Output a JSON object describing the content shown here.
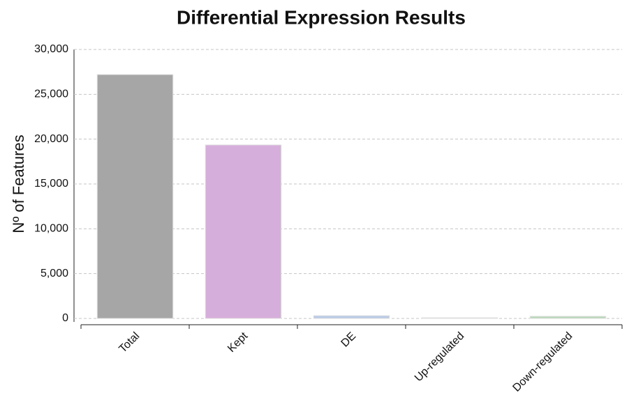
{
  "chart_data": {
    "type": "bar",
    "title": "Differential Expression Results",
    "y_label": "Nº of Features",
    "categories": [
      "Total",
      "Kept",
      "DE",
      "Up-regulated",
      "Down-regulated"
    ],
    "values": [
      27200,
      19350,
      310,
      80,
      240
    ],
    "colors": [
      "#a6a6a6",
      "#d6aedb",
      "#b9c9e6",
      "#c8c8c8",
      "#b8d8b8"
    ],
    "ylim": [
      0,
      30000
    ],
    "yticks": [
      0,
      {
        "value": 5000,
        "label": "5,000"
      },
      {
        "value": 10000,
        "label": "10,000"
      },
      {
        "value": 15000,
        "label": "15,000"
      },
      {
        "value": 20000,
        "label": "20,000"
      },
      {
        "value": 25000,
        "label": "25,000"
      },
      {
        "value": 30000,
        "label": "30,000"
      }
    ],
    "grid": true
  }
}
